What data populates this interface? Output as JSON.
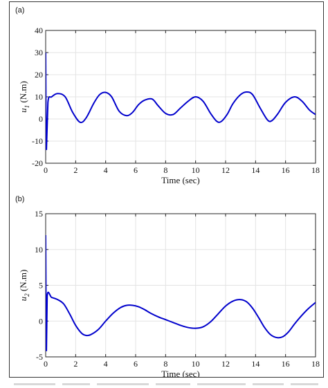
{
  "figure": {
    "caption_visible": false
  },
  "chart_data": [
    {
      "panel_label": "(a)",
      "type": "line",
      "xlabel": "Time (sec)",
      "ylabel_main": "u",
      "ylabel_sub": "1",
      "ylabel_unit": " (N.m)",
      "xlim": [
        0,
        18
      ],
      "ylim": [
        -20,
        40
      ],
      "xticks": [
        0,
        2,
        4,
        6,
        8,
        10,
        12,
        14,
        16,
        18
      ],
      "yticks": [
        -20,
        -10,
        0,
        10,
        20,
        30,
        40
      ],
      "grid": true,
      "line_color": "#0000cc",
      "series": [
        {
          "x": [
            0,
            0.02,
            0.05,
            0.15,
            0.4,
            0.8,
            1.3,
            1.8,
            2.3,
            2.7,
            3.2,
            3.6,
            4.0,
            4.4,
            4.9,
            5.4,
            5.8,
            6.2,
            6.6,
            7.1,
            7.5,
            8.0,
            8.5,
            9.0,
            9.5,
            10.0,
            10.5,
            11.0,
            11.4,
            11.7,
            12.1,
            12.5,
            13.0,
            13.4,
            13.8,
            14.3,
            14.8,
            15.1,
            15.5,
            16.0,
            16.6,
            17.1,
            17.6,
            18.0
          ],
          "y": [
            30,
            0,
            -14,
            7.5,
            10,
            11.5,
            10,
            3,
            -1.5,
            0.5,
            7,
            11,
            12,
            10,
            3.5,
            1.5,
            3,
            6.5,
            8.5,
            9,
            6,
            2.5,
            2,
            5,
            8,
            10,
            8,
            2.5,
            -1,
            -1.2,
            2,
            7,
            11,
            12.2,
            11,
            5,
            -0.5,
            -0.7,
            2.5,
            7.5,
            10,
            8,
            4,
            2
          ]
        }
      ]
    },
    {
      "panel_label": "(b)",
      "type": "line",
      "xlabel": "Time (sec)",
      "ylabel_main": "u",
      "ylabel_sub": "2",
      "ylabel_unit": " (N.m)",
      "xlim": [
        0,
        18
      ],
      "ylim": [
        -5,
        15
      ],
      "xticks": [
        0,
        2,
        4,
        6,
        8,
        10,
        12,
        14,
        16,
        18
      ],
      "yticks": [
        -5,
        0,
        5,
        10,
        15
      ],
      "grid": true,
      "line_color": "#0000cc",
      "series": [
        {
          "x": [
            0,
            0.02,
            0.05,
            0.1,
            0.4,
            0.8,
            1.2,
            1.6,
            2.0,
            2.4,
            2.7,
            3.0,
            3.5,
            4.0,
            4.5,
            5.0,
            5.4,
            5.8,
            6.2,
            6.6,
            7.0,
            7.5,
            8.0,
            8.5,
            9.0,
            9.5,
            10.0,
            10.5,
            11.0,
            11.5,
            12.0,
            12.5,
            13.0,
            13.4,
            13.8,
            14.2,
            14.6,
            15.0,
            15.4,
            15.8,
            16.2,
            16.6,
            17.0,
            17.5,
            18.0
          ],
          "y": [
            12,
            3,
            -4.2,
            3.5,
            3.3,
            3,
            2.4,
            1,
            -0.6,
            -1.7,
            -2,
            -1.9,
            -1.2,
            0,
            1.1,
            1.9,
            2.2,
            2.2,
            2,
            1.6,
            1.1,
            0.6,
            0.2,
            -0.2,
            -0.6,
            -0.9,
            -1,
            -0.8,
            -0.1,
            1,
            2.1,
            2.8,
            3,
            2.7,
            1.8,
            0.5,
            -0.9,
            -1.9,
            -2.3,
            -2.2,
            -1.5,
            -0.4,
            0.6,
            1.7,
            2.6
          ]
        }
      ]
    }
  ]
}
